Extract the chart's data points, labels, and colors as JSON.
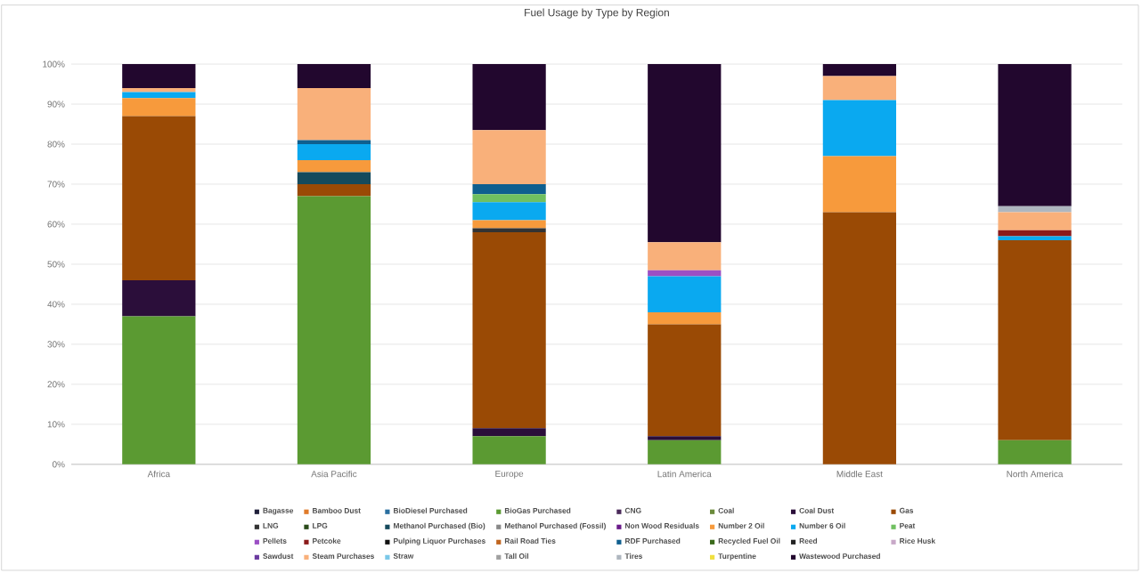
{
  "chart_data": {
    "type": "bar",
    "stacked": true,
    "title": "Fuel Usage by Type by Region",
    "categories": [
      "Africa",
      "Asia Pacific",
      "Europe",
      "Latin America",
      "Middle East",
      "North America"
    ],
    "ylim": [
      0,
      100
    ],
    "yticks": [
      {
        "value": 0,
        "label": "0%"
      },
      {
        "value": 10,
        "label": "10%"
      },
      {
        "value": 20,
        "label": "20%"
      },
      {
        "value": 30,
        "label": "30%"
      },
      {
        "value": 40,
        "label": "40%"
      },
      {
        "value": 50,
        "label": "50%"
      },
      {
        "value": 60,
        "label": "60%"
      },
      {
        "value": 70,
        "label": "70%"
      },
      {
        "value": 80,
        "label": "80%"
      },
      {
        "value": 90,
        "label": "90%"
      },
      {
        "value": 100,
        "label": "100%"
      }
    ],
    "grid": "y",
    "legend": "bottom",
    "series": [
      {
        "name": "Bagasse",
        "color": "#1f1f3a",
        "values": [
          0,
          0,
          0,
          0,
          0,
          0
        ]
      },
      {
        "name": "Bamboo Dust",
        "color": "#e07b2a",
        "values": [
          0,
          0,
          0,
          0,
          0,
          0
        ]
      },
      {
        "name": "BioDiesel Purchased",
        "color": "#2a6fa0",
        "values": [
          0,
          0,
          0,
          0,
          0,
          0
        ]
      },
      {
        "name": "BioGas Purchased",
        "color": "#5b9a32",
        "values": [
          37,
          67,
          7,
          6,
          0,
          6
        ]
      },
      {
        "name": "CNG",
        "color": "#4a2a5a",
        "values": [
          0,
          0,
          0,
          0,
          0,
          0
        ]
      },
      {
        "name": "Coal",
        "color": "#6a8a3a",
        "values": [
          0,
          0,
          0,
          0,
          0,
          0
        ]
      },
      {
        "name": "Coal Dust",
        "color": "#2b0e3a",
        "values": [
          9,
          0,
          2,
          1,
          0,
          0
        ]
      },
      {
        "name": "Gas",
        "color": "#9a4a05",
        "values": [
          41,
          3,
          49,
          28,
          63,
          50
        ]
      },
      {
        "name": "LNG",
        "color": "#333333",
        "values": [
          0,
          0,
          1,
          0,
          0,
          0
        ]
      },
      {
        "name": "LPG",
        "color": "#2a4a1a",
        "values": [
          0,
          0,
          0,
          0,
          0,
          0
        ]
      },
      {
        "name": "Methanol Purchased (Bio)",
        "color": "#154a5c",
        "values": [
          0,
          3,
          0,
          0,
          0,
          0
        ]
      },
      {
        "name": "Methanol Purchased (Fossil)",
        "color": "#888888",
        "values": [
          0,
          0,
          0,
          0,
          0,
          0
        ]
      },
      {
        "name": "Non Wood Residuals",
        "color": "#6a1a8a",
        "values": [
          0,
          0,
          0,
          0,
          0,
          0
        ]
      },
      {
        "name": "Number 2 Oil",
        "color": "#f79a3c",
        "values": [
          4.5,
          3,
          2,
          3,
          14,
          0
        ]
      },
      {
        "name": "Number 6 Oil",
        "color": "#0aa9f0",
        "values": [
          1.5,
          4,
          4.5,
          9,
          14,
          1
        ]
      },
      {
        "name": "Peat",
        "color": "#70c060",
        "values": [
          0,
          0,
          2,
          0,
          0,
          0
        ]
      },
      {
        "name": "Pellets",
        "color": "#9b4fc4",
        "values": [
          0,
          0,
          0,
          1.5,
          0,
          0
        ]
      },
      {
        "name": "Petcoke",
        "color": "#8b1a1a",
        "values": [
          0,
          0,
          0,
          0,
          0,
          1.5
        ]
      },
      {
        "name": "Pulping Liquor Purchases",
        "color": "#111111",
        "values": [
          0,
          0,
          0,
          0,
          0,
          0
        ]
      },
      {
        "name": "Rail Road Ties",
        "color": "#c0651e",
        "values": [
          0,
          0,
          0,
          0,
          0,
          0
        ]
      },
      {
        "name": "RDF Purchased",
        "color": "#0f5f8f",
        "values": [
          0,
          1,
          2.5,
          0,
          0,
          0
        ]
      },
      {
        "name": "Recycled Fuel Oil",
        "color": "#3a6a1a",
        "values": [
          0,
          0,
          0,
          0,
          0,
          0
        ]
      },
      {
        "name": "Reed",
        "color": "#222222",
        "values": [
          0,
          0,
          0,
          0,
          0,
          0
        ]
      },
      {
        "name": "Rice Husk",
        "color": "#c8a8c8",
        "values": [
          0,
          0,
          0,
          0,
          0,
          0
        ]
      },
      {
        "name": "Sawdust",
        "color": "#6a3aa0",
        "values": [
          0,
          0,
          0,
          0,
          0,
          0
        ]
      },
      {
        "name": "Steam Purchases",
        "color": "#f9b07a",
        "values": [
          1,
          13,
          13.5,
          7,
          6,
          4.5
        ]
      },
      {
        "name": "Straw",
        "color": "#7ac8e8",
        "values": [
          0,
          0,
          0,
          0,
          0,
          0
        ]
      },
      {
        "name": "Tall Oil",
        "color": "#a0a0a0",
        "values": [
          0,
          0,
          0,
          0,
          0,
          0
        ]
      },
      {
        "name": "Tires",
        "color": "#aeb6bf",
        "values": [
          0,
          0,
          0,
          0,
          0,
          1.5
        ]
      },
      {
        "name": "Turpentine",
        "color": "#f0e040",
        "values": [
          0,
          0,
          0,
          0,
          0,
          0
        ]
      },
      {
        "name": "Wastewood Purchased",
        "color": "#22072e",
        "values": [
          6,
          6,
          16.5,
          44.5,
          3,
          35.5
        ]
      }
    ]
  }
}
